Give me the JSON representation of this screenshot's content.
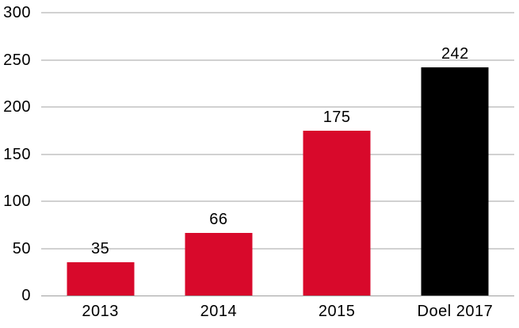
{
  "chart_data": {
    "type": "bar",
    "categories": [
      "2013",
      "2014",
      "2015",
      "Doel 2017"
    ],
    "values": [
      35,
      66,
      175,
      242
    ],
    "bar_colors": [
      "#d8092b",
      "#d8092b",
      "#d8092b",
      "#000000"
    ],
    "title": "",
    "xlabel": "",
    "ylabel": "",
    "ylim": [
      0,
      300
    ],
    "yticks": [
      0,
      50,
      100,
      150,
      200,
      250,
      300
    ],
    "grid": "horizontal",
    "legend": "none",
    "colors": {
      "bar_red": "#d8092b",
      "bar_black": "#000000",
      "gridline": "#a3a3a3",
      "axis_line": "#9f9f9f",
      "text": "#000000",
      "background": "#ffffff"
    }
  }
}
